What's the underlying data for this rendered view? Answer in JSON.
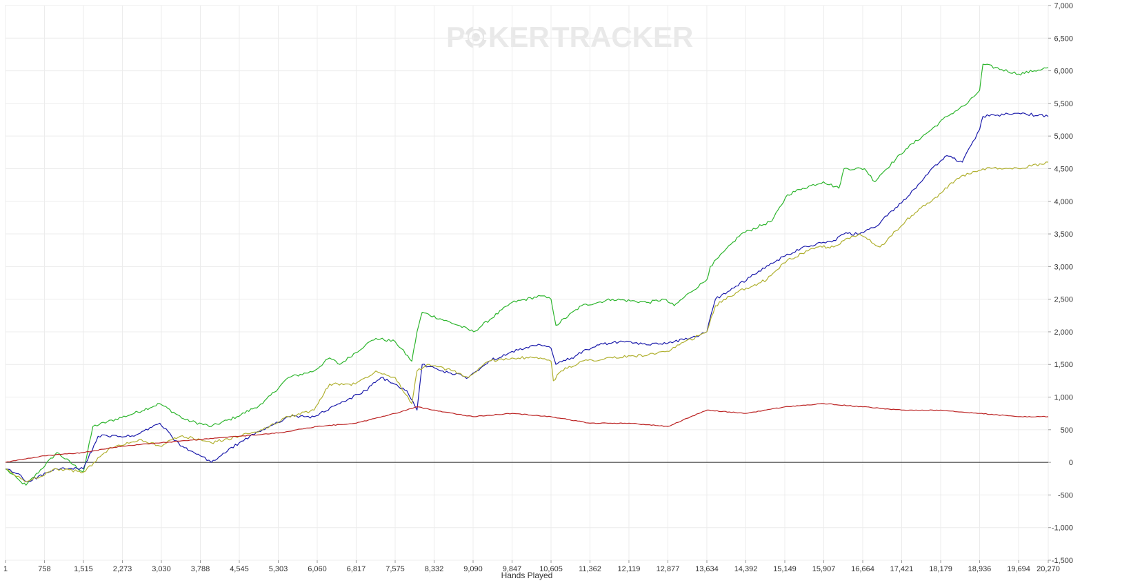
{
  "watermark": {
    "part1": "P",
    "part2": "KER",
    "part3": "TRACKER",
    "chip_icon": "poker-chip-icon"
  },
  "chart_data": {
    "type": "line",
    "title": "",
    "xlabel": "Hands Played",
    "ylabel": "",
    "xlim": [
      1,
      20270
    ],
    "ylim": [
      -1500,
      7000
    ],
    "grid": true,
    "x_ticks": [
      "1",
      "758",
      "1,515",
      "2,273",
      "3,030",
      "3,788",
      "4,545",
      "5,303",
      "6,060",
      "6,817",
      "7,575",
      "8,332",
      "9,090",
      "9,847",
      "10,605",
      "11,362",
      "12,119",
      "12,877",
      "13,634",
      "14,392",
      "15,149",
      "15,907",
      "16,664",
      "17,421",
      "18,179",
      "18,936",
      "19,694",
      "20,270"
    ],
    "x_tick_values": [
      1,
      758,
      1515,
      2273,
      3030,
      3788,
      4545,
      5303,
      6060,
      6817,
      7575,
      8332,
      9090,
      9847,
      10605,
      11362,
      12119,
      12877,
      13634,
      14392,
      15149,
      15907,
      16664,
      17421,
      18179,
      18936,
      19694,
      20270
    ],
    "y_ticks": [
      "7,000",
      "6,500",
      "6,000",
      "5,500",
      "5,000",
      "4,500",
      "4,000",
      "3,500",
      "3,000",
      "2,500",
      "2,000",
      "1,500",
      "1,000",
      "500",
      "0",
      "-500",
      "-1,000",
      "-1,500"
    ],
    "y_tick_values": [
      7000,
      6500,
      6000,
      5500,
      5000,
      4500,
      4000,
      3500,
      3000,
      2500,
      2000,
      1500,
      1000,
      500,
      0,
      -500,
      -1000,
      -1500
    ],
    "series": [
      {
        "color": "#2db52d",
        "x": [
          1,
          300,
          400,
          1000,
          1515,
          1700,
          2500,
          3000,
          3500,
          4000,
          4500,
          5000,
          5500,
          6000,
          6300,
          6500,
          7000,
          7200,
          7575,
          7900,
          8000,
          8100,
          8800,
          9100,
          9847,
          10400,
          10605,
          10700,
          11200,
          11800,
          12500,
          12800,
          13000,
          13300,
          13634,
          13700,
          14300,
          14900,
          15200,
          15500,
          15900,
          16200,
          16300,
          16700,
          16900,
          17000,
          17500,
          18000,
          18300,
          18700,
          18936,
          19000,
          19694,
          20000,
          20270
        ],
        "y": [
          -100,
          -300,
          -350,
          150,
          -150,
          550,
          750,
          900,
          650,
          550,
          700,
          900,
          1300,
          1400,
          1600,
          1500,
          1800,
          1900,
          1850,
          1550,
          2000,
          2300,
          2100,
          2000,
          2450,
          2550,
          2500,
          2100,
          2400,
          2500,
          2450,
          2500,
          2400,
          2600,
          2800,
          3000,
          3500,
          3700,
          4100,
          4200,
          4300,
          4200,
          4500,
          4500,
          4300,
          4400,
          4800,
          5100,
          5300,
          5500,
          5700,
          6100,
          5950,
          6000,
          6050
        ]
      },
      {
        "color": "#1a1aaa",
        "x": [
          1,
          300,
          400,
          1000,
          1515,
          1800,
          2500,
          3000,
          3400,
          3788,
          4000,
          4545,
          5000,
          5500,
          6000,
          6500,
          7000,
          7300,
          7800,
          8000,
          8100,
          8500,
          9000,
          9400,
          9847,
          10400,
          10605,
          10700,
          11000,
          11500,
          12000,
          12500,
          13000,
          13300,
          13634,
          13800,
          14200,
          15000,
          15500,
          16100,
          16300,
          16600,
          16900,
          17300,
          17700,
          18000,
          18300,
          18600,
          18936,
          19000,
          19694,
          20270
        ],
        "y": [
          -100,
          -200,
          -300,
          -100,
          -100,
          400,
          400,
          600,
          250,
          100,
          0,
          300,
          500,
          700,
          700,
          900,
          1100,
          1300,
          1100,
          800,
          1500,
          1400,
          1300,
          1550,
          1700,
          1800,
          1750,
          1500,
          1600,
          1800,
          1850,
          1800,
          1850,
          1900,
          2000,
          2500,
          2700,
          3100,
          3300,
          3400,
          3500,
          3500,
          3600,
          3900,
          4200,
          4500,
          4700,
          4600,
          5100,
          5300,
          5350,
          5300
        ]
      },
      {
        "color": "#b0b030",
        "x": [
          1,
          300,
          400,
          1000,
          1515,
          2000,
          2600,
          3000,
          3400,
          3788,
          4000,
          4545,
          5000,
          5500,
          6000,
          6300,
          6800,
          7200,
          7575,
          7900,
          8000,
          8200,
          8700,
          9000,
          9400,
          9847,
          10400,
          10605,
          10650,
          10800,
          11200,
          11800,
          12500,
          12900,
          13100,
          13634,
          13800,
          14200,
          14800,
          15200,
          15800,
          16100,
          16300,
          16600,
          17000,
          17500,
          17800,
          18000,
          18500,
          19000,
          19694,
          20270
        ],
        "y": [
          -100,
          -250,
          -300,
          -100,
          -150,
          200,
          350,
          250,
          400,
          350,
          300,
          400,
          500,
          700,
          800,
          1200,
          1200,
          1400,
          1300,
          900,
          1400,
          1500,
          1400,
          1300,
          1550,
          1600,
          1600,
          1550,
          1250,
          1400,
          1550,
          1600,
          1650,
          1700,
          1800,
          2000,
          2400,
          2600,
          2800,
          3100,
          3300,
          3300,
          3400,
          3500,
          3300,
          3700,
          3900,
          4000,
          4350,
          4500,
          4500,
          4600
        ]
      },
      {
        "color": "#bb2222",
        "x": [
          1,
          758,
          1515,
          2273,
          3030,
          3788,
          4545,
          5303,
          6060,
          6817,
          7575,
          8000,
          8332,
          9090,
          9847,
          10605,
          11362,
          12119,
          12877,
          13634,
          14392,
          15149,
          15907,
          16664,
          17421,
          18179,
          18936,
          19694,
          20270
        ],
        "y": [
          0,
          100,
          150,
          250,
          300,
          350,
          400,
          450,
          550,
          600,
          750,
          850,
          800,
          700,
          750,
          700,
          600,
          600,
          550,
          800,
          750,
          850,
          900,
          850,
          800,
          800,
          750,
          700,
          700
        ]
      }
    ]
  }
}
